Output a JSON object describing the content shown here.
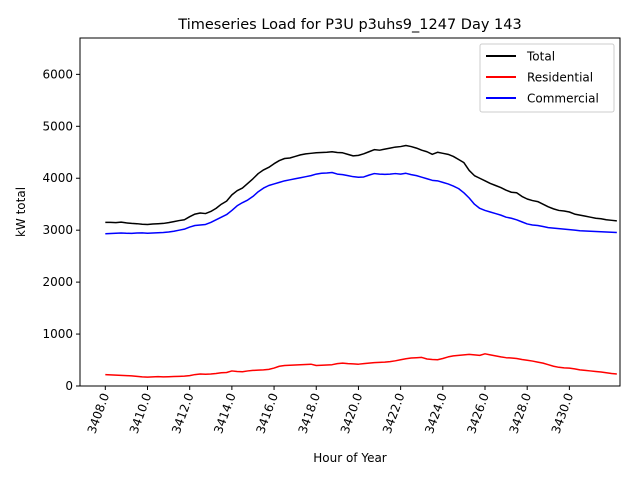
{
  "chart_data": {
    "type": "line",
    "title": "Timeseries Load for P3U p3uhs9_1247  Day 143",
    "xlabel": "Hour of Year",
    "ylabel": "kW total",
    "xlim": [
      3406.8,
      3432.4
    ],
    "ylim": [
      0,
      6700
    ],
    "xticks": [
      3408,
      3410,
      3412,
      3414,
      3416,
      3418,
      3420,
      3422,
      3424,
      3426,
      3428,
      3430
    ],
    "xtick_labels": [
      "3408.0",
      "3410.0",
      "3412.0",
      "3414.0",
      "3416.0",
      "3418.0",
      "3420.0",
      "3422.0",
      "3424.0",
      "3426.0",
      "3428.0",
      "3430.0"
    ],
    "yticks": [
      0,
      1000,
      2000,
      3000,
      4000,
      5000,
      6000
    ],
    "ytick_labels": [
      "0",
      "1000",
      "2000",
      "3000",
      "4000",
      "5000",
      "6000"
    ],
    "legend_position": "top-right",
    "grid": false,
    "x_start": 3408.0,
    "x_step": 0.25,
    "series": [
      {
        "name": "Total",
        "color": "#000000",
        "values": [
          3150,
          3150,
          3145,
          3155,
          3140,
          3130,
          3125,
          3115,
          3110,
          3120,
          3125,
          3130,
          3145,
          3165,
          3185,
          3200,
          3260,
          3310,
          3330,
          3320,
          3360,
          3420,
          3500,
          3560,
          3680,
          3760,
          3810,
          3900,
          3990,
          4090,
          4160,
          4210,
          4280,
          4340,
          4380,
          4390,
          4420,
          4450,
          4470,
          4480,
          4490,
          4495,
          4500,
          4510,
          4495,
          4490,
          4460,
          4430,
          4440,
          4470,
          4510,
          4550,
          4540,
          4560,
          4580,
          4600,
          4610,
          4630,
          4610,
          4580,
          4540,
          4510,
          4460,
          4500,
          4480,
          4460,
          4420,
          4360,
          4300,
          4150,
          4050,
          4000,
          3950,
          3900,
          3860,
          3820,
          3770,
          3730,
          3720,
          3650,
          3600,
          3570,
          3550,
          3500,
          3450,
          3410,
          3380,
          3370,
          3350,
          3310,
          3290,
          3270,
          3250,
          3230,
          3220,
          3200,
          3190,
          3180
        ]
      },
      {
        "name": "Residential",
        "color": "#ff0000",
        "values": [
          220,
          215,
          210,
          205,
          200,
          195,
          185,
          175,
          170,
          175,
          180,
          175,
          178,
          182,
          185,
          190,
          200,
          220,
          230,
          225,
          230,
          240,
          255,
          260,
          290,
          280,
          275,
          290,
          300,
          305,
          310,
          320,
          345,
          380,
          395,
          400,
          405,
          410,
          415,
          420,
          395,
          400,
          405,
          410,
          430,
          440,
          430,
          425,
          420,
          430,
          440,
          450,
          455,
          460,
          470,
          485,
          505,
          525,
          540,
          545,
          550,
          520,
          510,
          505,
          530,
          560,
          580,
          590,
          600,
          610,
          600,
          590,
          620,
          600,
          580,
          560,
          545,
          540,
          530,
          510,
          495,
          480,
          460,
          440,
          410,
          380,
          360,
          350,
          345,
          330,
          310,
          300,
          290,
          280,
          270,
          255,
          240,
          230
        ]
      },
      {
        "name": "Commercial",
        "color": "#0000ff",
        "values": [
          2930,
          2935,
          2940,
          2945,
          2940,
          2938,
          2945,
          2948,
          2940,
          2945,
          2950,
          2955,
          2965,
          2980,
          3000,
          3020,
          3060,
          3090,
          3100,
          3110,
          3150,
          3200,
          3250,
          3300,
          3380,
          3470,
          3530,
          3580,
          3650,
          3740,
          3810,
          3860,
          3890,
          3920,
          3950,
          3970,
          3990,
          4010,
          4030,
          4050,
          4080,
          4095,
          4100,
          4110,
          4080,
          4070,
          4050,
          4030,
          4020,
          4025,
          4060,
          4090,
          4080,
          4075,
          4080,
          4090,
          4080,
          4095,
          4070,
          4050,
          4020,
          3990,
          3960,
          3950,
          3920,
          3890,
          3850,
          3800,
          3720,
          3620,
          3500,
          3420,
          3380,
          3350,
          3320,
          3290,
          3250,
          3230,
          3200,
          3160,
          3120,
          3100,
          3090,
          3070,
          3050,
          3040,
          3030,
          3020,
          3010,
          3000,
          2990,
          2985,
          2980,
          2975,
          2970,
          2965,
          2960,
          2955
        ]
      }
    ]
  }
}
